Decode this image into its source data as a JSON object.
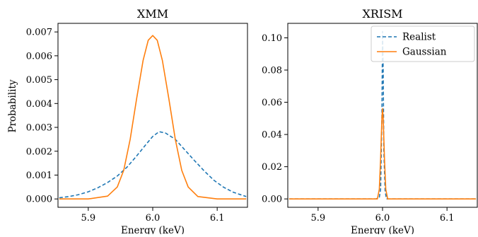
{
  "figure": {
    "ylabel": "Probability"
  },
  "chart_data": [
    {
      "type": "line",
      "title": "XMM",
      "xlabel": "Energy (keV)",
      "ylabel": "Probability",
      "xlim": [
        5.853,
        6.147
      ],
      "ylim": [
        -0.00035,
        0.00736
      ],
      "xticks": [
        5.9,
        6.0,
        6.1
      ],
      "xtick_labels": [
        "5.9",
        "6.0",
        "6.1"
      ],
      "yticks": [
        0.0,
        0.001,
        0.002,
        0.003,
        0.004,
        0.005,
        0.006,
        0.007
      ],
      "ytick_labels": [
        "0.000",
        "0.001",
        "0.002",
        "0.003",
        "0.004",
        "0.005",
        "0.006",
        "0.007"
      ],
      "grid": false,
      "series": [
        {
          "name": "Realist",
          "color": "#1f77b4",
          "dash": "dashed",
          "x": [
            5.855,
            5.87,
            5.885,
            5.9,
            5.915,
            5.93,
            5.945,
            5.96,
            5.975,
            5.99,
            6.0,
            6.01,
            6.02,
            6.035,
            6.05,
            6.065,
            6.08,
            6.095,
            6.11,
            6.125,
            6.145
          ],
          "y": [
            5e-05,
            0.0001,
            0.00018,
            0.0003,
            0.00047,
            0.00069,
            0.00096,
            0.00133,
            0.0018,
            0.0023,
            0.00262,
            0.00282,
            0.00276,
            0.0025,
            0.00205,
            0.0016,
            0.00117,
            0.00078,
            0.00049,
            0.00028,
            0.0001
          ]
        },
        {
          "name": "Gaussian",
          "color": "#ff7f0e",
          "dash": "solid",
          "x": [
            5.855,
            5.9,
            5.93,
            5.945,
            5.955,
            5.965,
            5.975,
            5.985,
            5.993,
            6.0,
            6.007,
            6.015,
            6.025,
            6.035,
            6.045,
            6.055,
            6.07,
            6.1,
            6.145
          ],
          "y": [
            0.0,
            0.0,
            0.00012,
            0.0005,
            0.0012,
            0.0025,
            0.0042,
            0.0058,
            0.00665,
            0.00685,
            0.00665,
            0.0058,
            0.0042,
            0.0025,
            0.0012,
            0.0005,
            0.0001,
            0.0,
            0.0
          ]
        }
      ]
    },
    {
      "type": "line",
      "title": "XRISM",
      "xlabel": "Energy (keV)",
      "ylabel": "",
      "xlim": [
        5.853,
        6.147
      ],
      "ylim": [
        -0.0052,
        0.109
      ],
      "xticks": [
        5.9,
        6.0,
        6.1
      ],
      "xtick_labels": [
        "5.9",
        "6.0",
        "6.1"
      ],
      "yticks": [
        0.0,
        0.02,
        0.04,
        0.06,
        0.08,
        0.1
      ],
      "ytick_labels": [
        "0.00",
        "0.02",
        "0.04",
        "0.06",
        "0.08",
        "0.10"
      ],
      "grid": false,
      "legend": {
        "position": "top-right",
        "entries": [
          "Realist",
          "Gaussian"
        ]
      },
      "series": [
        {
          "name": "Realist",
          "color": "#1f77b4",
          "dash": "dashed",
          "x": [
            5.855,
            5.99,
            5.995,
            5.997,
            5.999,
            6.0,
            6.001,
            6.002,
            6.004,
            6.006,
            6.145
          ],
          "y": [
            0.0,
            0.0,
            0.001,
            0.006,
            0.05,
            0.104,
            0.08,
            0.03,
            0.005,
            0.0,
            0.0
          ]
        },
        {
          "name": "Gaussian",
          "color": "#ff7f0e",
          "dash": "solid",
          "x": [
            5.855,
            5.992,
            5.995,
            5.997,
            5.999,
            6.0,
            6.001,
            6.003,
            6.005,
            6.008,
            6.145
          ],
          "y": [
            0.0,
            0.0,
            0.006,
            0.025,
            0.05,
            0.056,
            0.05,
            0.025,
            0.006,
            0.0,
            0.0
          ]
        }
      ]
    }
  ]
}
